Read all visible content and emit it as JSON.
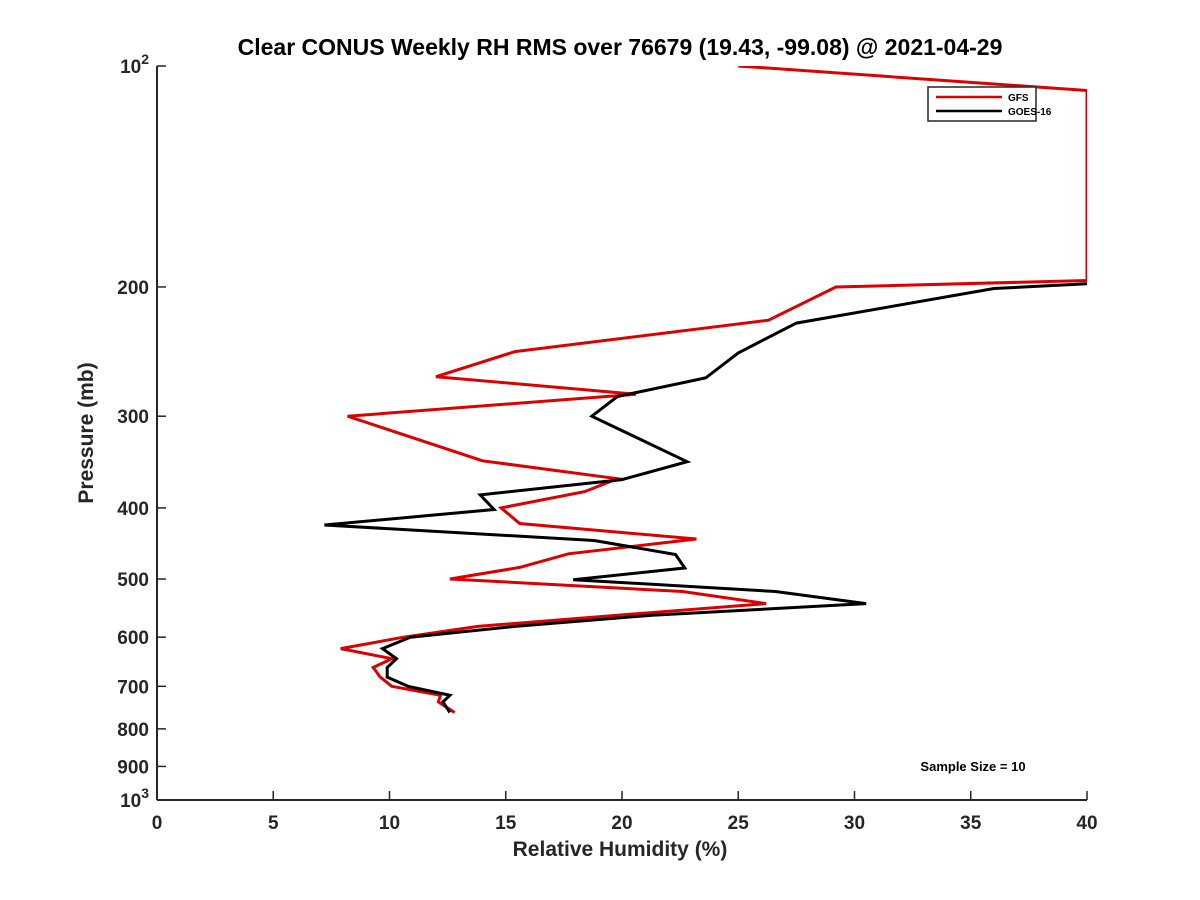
{
  "chart_data": {
    "type": "line",
    "title": "Clear CONUS Weekly RH RMS over 76679 (19.43, -99.08) @ 2021-04-29",
    "xlabel": "Relative Humidity (%)",
    "ylabel": "Pressure (mb)",
    "xlim": [
      0,
      40
    ],
    "ylim": [
      100,
      1000
    ],
    "yscale": "log",
    "y_reversed": true,
    "grid": false,
    "legend_position": "top-right",
    "x_ticks": [
      "0",
      "5",
      "10",
      "15",
      "20",
      "25",
      "30",
      "35",
      "40"
    ],
    "y_ticks": [
      {
        "value": 100,
        "base": "10",
        "exp": "2"
      },
      {
        "value": 200,
        "label": "200"
      },
      {
        "value": 300,
        "label": "300"
      },
      {
        "value": 400,
        "label": "400"
      },
      {
        "value": 500,
        "label": "500"
      },
      {
        "value": 600,
        "label": "600"
      },
      {
        "value": 700,
        "label": "700"
      },
      {
        "value": 800,
        "label": "800"
      },
      {
        "value": 900,
        "label": "900"
      },
      {
        "value": 1000,
        "base": "10",
        "exp": "3"
      }
    ],
    "series": [
      {
        "name": "GFS",
        "color": "#dd0000",
        "points": [
          [
            25.0,
            100
          ],
          [
            40.0,
            108
          ],
          [
            40.0,
            196
          ],
          [
            29.2,
            200
          ],
          [
            26.3,
            222
          ],
          [
            15.4,
            245
          ],
          [
            12.0,
            265
          ],
          [
            20.6,
            280
          ],
          [
            8.2,
            300
          ],
          [
            14.0,
            345
          ],
          [
            19.8,
            365
          ],
          [
            18.4,
            380
          ],
          [
            14.8,
            400
          ],
          [
            15.6,
            420
          ],
          [
            23.2,
            441
          ],
          [
            17.7,
            462
          ],
          [
            15.6,
            482
          ],
          [
            12.6,
            500
          ],
          [
            22.6,
            520
          ],
          [
            26.2,
            540
          ],
          [
            19.8,
            560
          ],
          [
            13.8,
            580
          ],
          [
            10.6,
            600
          ],
          [
            7.9,
            622
          ],
          [
            10.1,
            642
          ],
          [
            9.3,
            660
          ],
          [
            9.6,
            680
          ],
          [
            10.1,
            700
          ],
          [
            12.2,
            720
          ],
          [
            12.1,
            735
          ],
          [
            12.8,
            760
          ]
        ]
      },
      {
        "name": "GOES-16",
        "color": "#000000",
        "points": [
          [
            40.0,
            198
          ],
          [
            36.0,
            201
          ],
          [
            27.5,
            224
          ],
          [
            25.0,
            246
          ],
          [
            23.6,
            266
          ],
          [
            19.8,
            282
          ],
          [
            18.7,
            300
          ],
          [
            22.8,
            346
          ],
          [
            20.0,
            366
          ],
          [
            13.9,
            384
          ],
          [
            14.5,
            402
          ],
          [
            7.2,
            422
          ],
          [
            18.8,
            443
          ],
          [
            22.3,
            463
          ],
          [
            22.7,
            483
          ],
          [
            17.9,
            501
          ],
          [
            26.6,
            520
          ],
          [
            30.5,
            540
          ],
          [
            21.3,
            560
          ],
          [
            15.4,
            580
          ],
          [
            10.9,
            600
          ],
          [
            9.7,
            622
          ],
          [
            10.3,
            642
          ],
          [
            9.9,
            660
          ],
          [
            9.9,
            680
          ],
          [
            10.8,
            700
          ],
          [
            12.6,
            720
          ],
          [
            12.3,
            735
          ],
          [
            12.6,
            760
          ]
        ]
      }
    ],
    "annotations": [
      "Sample Size = 10"
    ]
  }
}
